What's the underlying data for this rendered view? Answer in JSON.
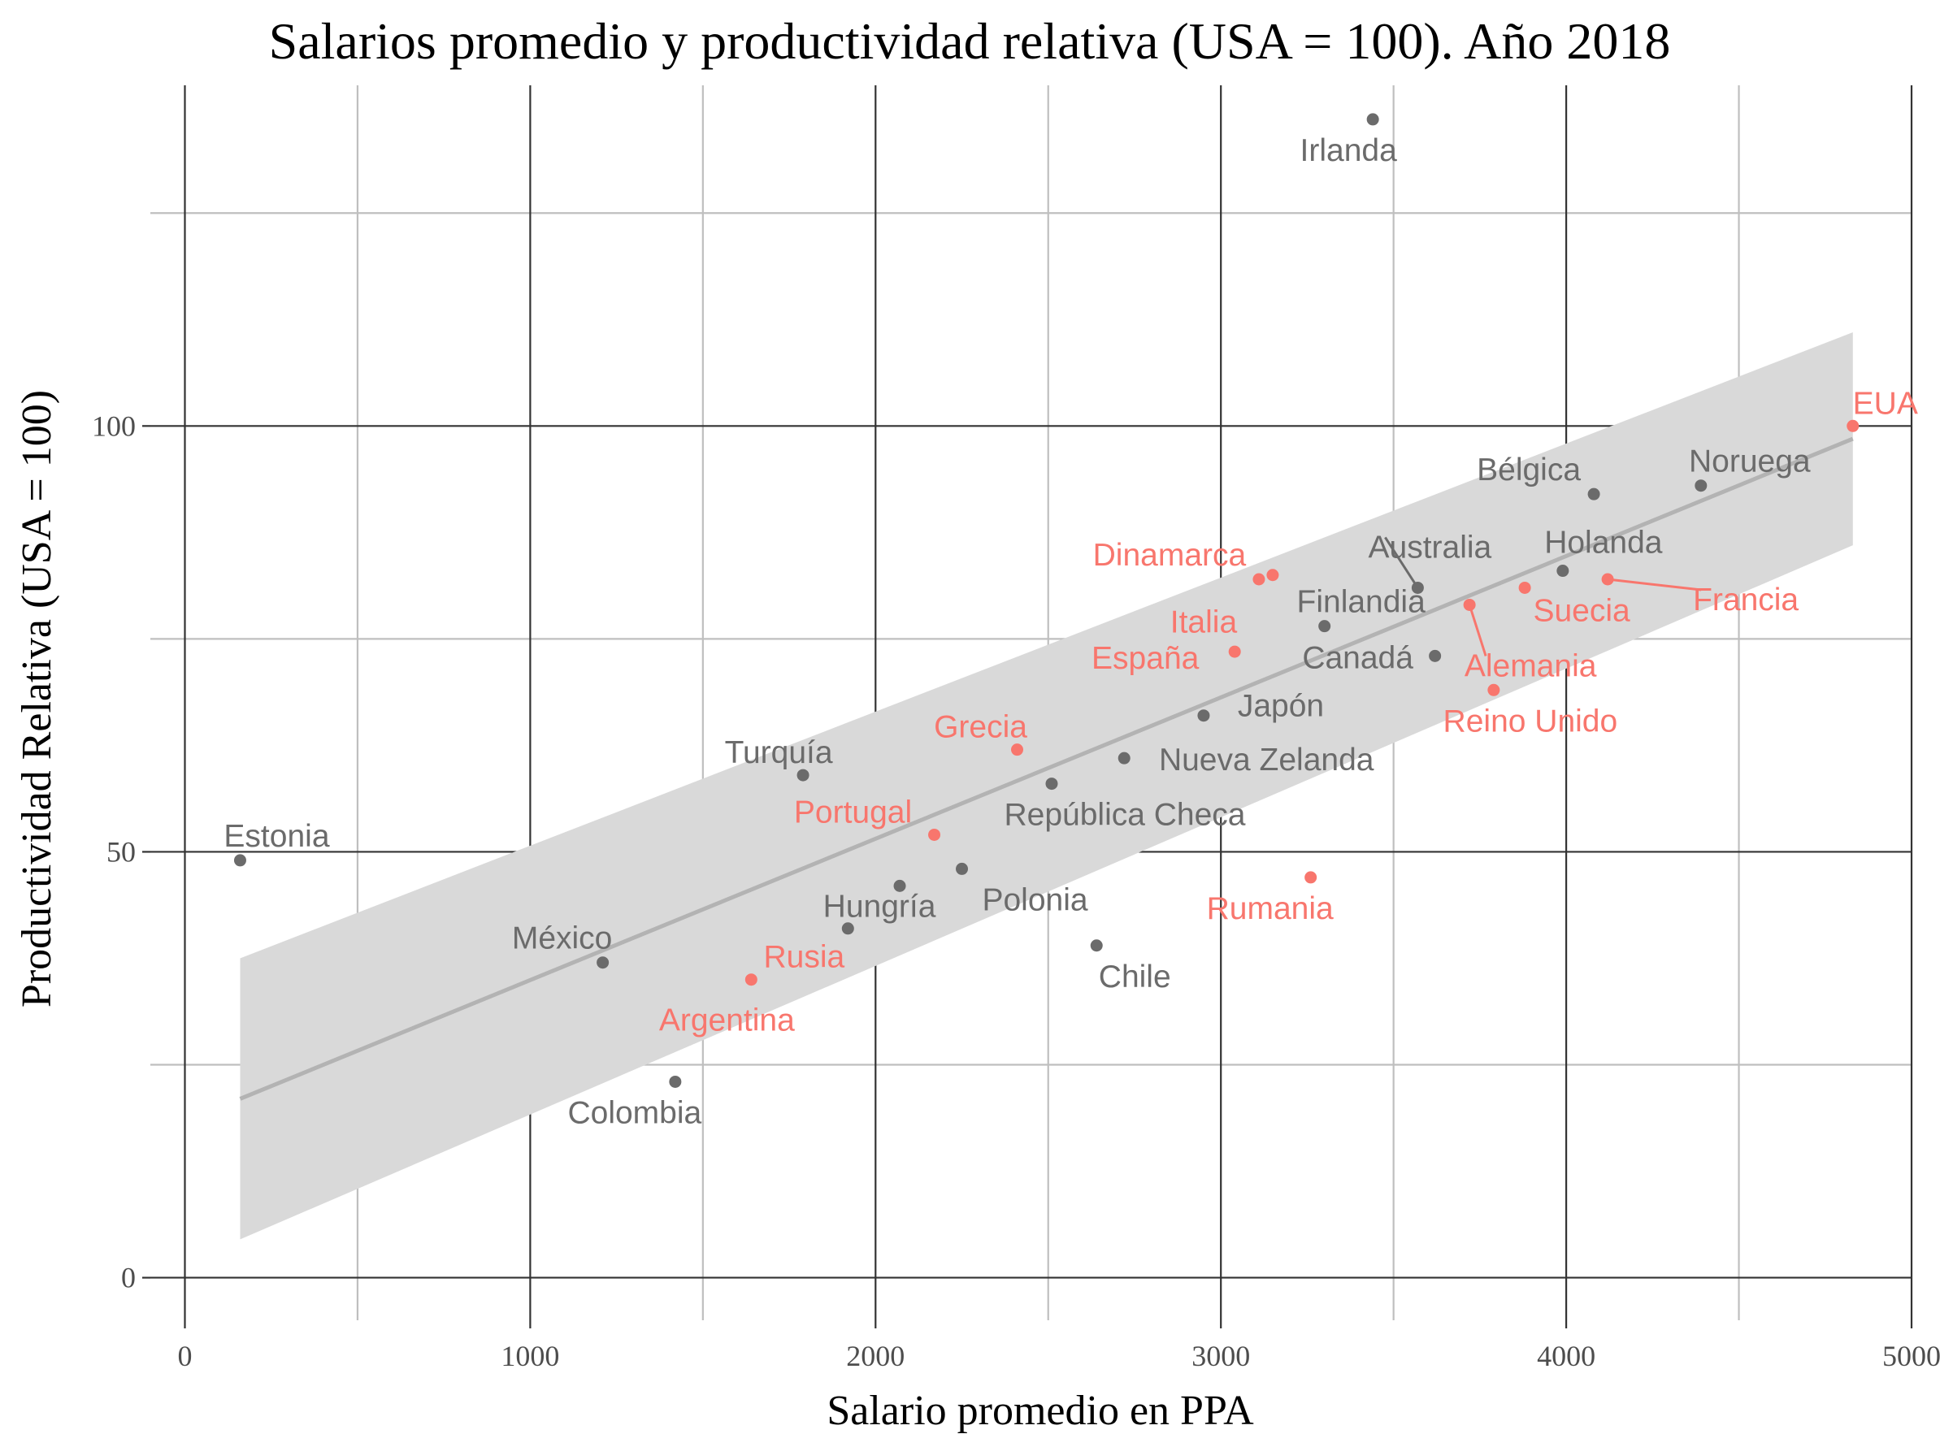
{
  "chart_data": {
    "type": "scatter",
    "title": "Salarios promedio y productividad relativa (USA = 100). Año 2018",
    "xlabel": "Salario promedio en PPA",
    "ylabel": "Productividad Relativa (USA = 100)",
    "xlim": [
      -100,
      5000
    ],
    "ylim": [
      -5,
      140
    ],
    "x_ticks": [
      0,
      1000,
      2000,
      3000,
      4000,
      5000
    ],
    "x_tick_labels": [
      "0",
      "1000",
      "2000",
      "3000",
      "4000",
      "5000"
    ],
    "y_ticks": [
      0,
      50,
      100
    ],
    "y_tick_labels": [
      "0",
      "50",
      "100"
    ],
    "x_minor_grid": [
      500,
      1500,
      2500,
      3500,
      4500
    ],
    "y_minor_grid": [
      25,
      75,
      125
    ],
    "grid": true,
    "colors": {
      "highlight": "#f8766d",
      "other": "#6b6b6b",
      "trend": "#b3b3b3",
      "band": "#d9d9d9",
      "grid_major": "#333333",
      "grid_minor": "#bfbfbf"
    },
    "trend": {
      "x": [
        160,
        4830
      ],
      "y": [
        21,
        98.5
      ]
    },
    "confidence_band": {
      "x": [
        160,
        4830
      ],
      "lower": [
        4.5,
        86
      ],
      "upper": [
        37.5,
        111
      ]
    },
    "points": [
      {
        "name": "Irlanda",
        "x": 3440,
        "y": 136,
        "group": "other",
        "label_dx": -30,
        "label_dy": 38
      },
      {
        "name": "EUA",
        "x": 4830,
        "y": 100,
        "group": "highlight",
        "label_dx": 40,
        "label_dy": -28
      },
      {
        "name": "Bélgica",
        "x": 4080,
        "y": 92,
        "group": "other",
        "label_dx": -80,
        "label_dy": -30
      },
      {
        "name": "Noruega",
        "x": 4390,
        "y": 93,
        "group": "other",
        "label_dx": 60,
        "label_dy": -30
      },
      {
        "name": "Dinamarca",
        "x": 3110,
        "y": 82,
        "group": "highlight",
        "label_dx": -110,
        "label_dy": -30
      },
      {
        "name": "Dinamarca",
        "x": 3150,
        "y": 82.5,
        "group": "highlight",
        "hide_label": true
      },
      {
        "name": "Australia",
        "x": 3570,
        "y": 81,
        "group": "other",
        "label_dx": 15,
        "label_dy": -50,
        "leader": true
      },
      {
        "name": "Holanda",
        "x": 3990,
        "y": 83,
        "group": "other",
        "label_dx": 50,
        "label_dy": -35
      },
      {
        "name": "Francia",
        "x": 4120,
        "y": 82,
        "group": "highlight",
        "label_dx": 170,
        "label_dy": 25,
        "leader": true
      },
      {
        "name": "Suecia",
        "x": 3880,
        "y": 81,
        "group": "highlight",
        "label_dx": 70,
        "label_dy": 28
      },
      {
        "name": "Italia",
        "x": 2950,
        "y": 77,
        "group": "highlight",
        "hide_point": true,
        "label_dx": 0,
        "label_dy": 0
      },
      {
        "name": "Finlandia",
        "x": 3300,
        "y": 76.5,
        "group": "other",
        "label_dx": 45,
        "label_dy": -30
      },
      {
        "name": "Alemania",
        "x": 3720,
        "y": 79,
        "group": "highlight",
        "label_dx": 75,
        "label_dy": 75,
        "leader": true
      },
      {
        "name": "España",
        "x": 3040,
        "y": 73.5,
        "group": "highlight",
        "label_dx": -110,
        "label_dy": 8
      },
      {
        "name": "Canadá",
        "x": 3620,
        "y": 73,
        "group": "other",
        "label_dx": -95,
        "label_dy": 2
      },
      {
        "name": "Reino Unido",
        "x": 3790,
        "y": 69,
        "group": "highlight",
        "label_dx": 45,
        "label_dy": 38
      },
      {
        "name": "Japón",
        "x": 2950,
        "y": 66,
        "group": "other",
        "label_dx": 95,
        "label_dy": -12
      },
      {
        "name": "Grecia",
        "x": 2410,
        "y": 62,
        "group": "highlight",
        "label_dx": -45,
        "label_dy": -28
      },
      {
        "name": "Turquía",
        "x": 1790,
        "y": 59,
        "group": "other",
        "label_dx": -30,
        "label_dy": -28
      },
      {
        "name": "Nueva Zelanda",
        "x": 2720,
        "y": 61,
        "group": "other",
        "label_dx": 175,
        "label_dy": 2
      },
      {
        "name": "República Checa",
        "x": 2510,
        "y": 58,
        "group": "other",
        "label_dx": 90,
        "label_dy": 38
      },
      {
        "name": "Portugal",
        "x": 2170,
        "y": 52,
        "group": "highlight",
        "label_dx": -100,
        "label_dy": -28
      },
      {
        "name": "Estonia",
        "x": 160,
        "y": 49,
        "group": "other",
        "label_dx": 45,
        "label_dy": -30
      },
      {
        "name": "Polonia",
        "x": 2250,
        "y": 48,
        "group": "other",
        "label_dx": 90,
        "label_dy": 38
      },
      {
        "name": "Rumania",
        "x": 3260,
        "y": 47,
        "group": "highlight",
        "label_dx": -50,
        "label_dy": 38
      },
      {
        "name": "Hungría",
        "x": 2070,
        "y": 46,
        "group": "other",
        "label_dx": -25,
        "label_dy": 25
      },
      {
        "name": "Chile",
        "x": 2640,
        "y": 39,
        "group": "other",
        "label_dx": 47,
        "label_dy": 38
      },
      {
        "name": "Rusia",
        "x": 1920,
        "y": 41,
        "group": "other",
        "hide_label": true
      },
      {
        "name": "México",
        "x": 1210,
        "y": 37,
        "group": "other",
        "label_dx": -50,
        "label_dy": -30
      },
      {
        "name": "Rusia",
        "x": 1640,
        "y": 35,
        "group": "highlight",
        "label_dx": 65,
        "label_dy": -28
      },
      {
        "name": "Argentina",
        "x": 1640,
        "y": 35,
        "group": "highlight",
        "hide_point": true,
        "label_dx": -30,
        "label_dy": 50
      },
      {
        "name": "Colombia",
        "x": 1420,
        "y": 23,
        "group": "other",
        "label_dx": -50,
        "label_dy": 38
      }
    ]
  }
}
